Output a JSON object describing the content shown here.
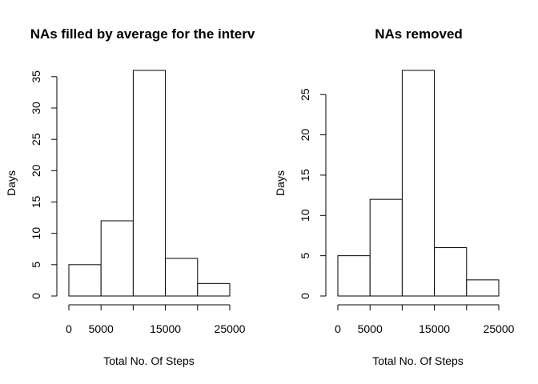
{
  "chart_data": [
    {
      "type": "bar",
      "title": "NAs filled by average for the interv",
      "xlabel": "Total No. Of Steps",
      "ylabel": "Days",
      "bins": [
        [
          0,
          5000
        ],
        [
          5000,
          10000
        ],
        [
          10000,
          15000
        ],
        [
          15000,
          20000
        ],
        [
          20000,
          25000
        ]
      ],
      "values": [
        5,
        12,
        36,
        6,
        2
      ],
      "xlim": [
        0,
        25000
      ],
      "ylim": [
        0,
        36
      ],
      "xticks": [
        0,
        5000,
        10000,
        15000,
        20000,
        25000
      ],
      "xtick_labels": [
        "0",
        "5000",
        "",
        "15000",
        "",
        "25000"
      ],
      "yticks": [
        0,
        5,
        10,
        15,
        20,
        25,
        30,
        35
      ],
      "ytick_labels": [
        "0",
        "5",
        "10",
        "15",
        "20",
        "25",
        "30",
        "35"
      ],
      "grid": false
    },
    {
      "type": "bar",
      "title": "NAs removed",
      "xlabel": "Total No. Of Steps",
      "ylabel": "Days",
      "bins": [
        [
          0,
          5000
        ],
        [
          5000,
          10000
        ],
        [
          10000,
          15000
        ],
        [
          15000,
          20000
        ],
        [
          20000,
          25000
        ]
      ],
      "values": [
        5,
        12,
        28,
        6,
        2
      ],
      "xlim": [
        0,
        25000
      ],
      "ylim": [
        0,
        28
      ],
      "xticks": [
        0,
        5000,
        10000,
        15000,
        20000,
        25000
      ],
      "xtick_labels": [
        "0",
        "5000",
        "",
        "15000",
        "",
        "25000"
      ],
      "yticks": [
        0,
        5,
        10,
        15,
        20,
        25
      ],
      "ytick_labels": [
        "0",
        "5",
        "10",
        "15",
        "20",
        "25"
      ],
      "grid": false
    }
  ]
}
